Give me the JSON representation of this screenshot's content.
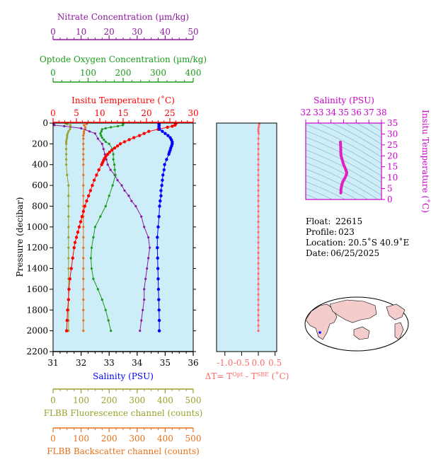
{
  "float_info": {
    "float_label": "Float:",
    "float_value": "22615",
    "profile_label": "Profile:",
    "profile_value": "023",
    "location_label": "Location:",
    "location_value": "20.5˚S  40.9˚E",
    "date_label": "Date:",
    "date_value": "06/25/2025"
  },
  "colors": {
    "temperature": "#ff0000",
    "salinity": "#0000ff",
    "oxygen": "#1a9a1a",
    "nitrate": "#8b1a9b",
    "fluorescence": "#9aa02a",
    "backscatter": "#e8701a",
    "delta_t": "#ff6a6a",
    "ts_curve": "#e020c0",
    "ts_axis": "#cc00cc",
    "plot_bg": "#cdeef8",
    "land": "#f4cccc"
  },
  "chart_data": [
    {
      "type": "line",
      "name": "profiles",
      "yaxis": {
        "label": "Pressure (decibar)",
        "range": [
          2200,
          0
        ],
        "ticks": [
          "0",
          "200",
          "400",
          "600",
          "800",
          "1000",
          "1200",
          "1400",
          "1600",
          "1800",
          "2000",
          "2200"
        ]
      },
      "axes": {
        "nitrate": {
          "label": "Nitrate Concentration (µm/kg)",
          "range": [
            0,
            50
          ],
          "ticks": [
            "0",
            "10",
            "20",
            "30",
            "40",
            "50"
          ]
        },
        "oxygen": {
          "label": "Optode Oxygen Concentration (µm/kg)",
          "range": [
            0,
            400
          ],
          "ticks": [
            "0",
            "100",
            "200",
            "300",
            "400"
          ]
        },
        "temperature": {
          "label": "Insitu Temperature (˚C)",
          "range": [
            0,
            30
          ],
          "ticks": [
            "0",
            "5",
            "10",
            "15",
            "20",
            "25",
            "30"
          ]
        },
        "salinity": {
          "label": "Salinity (PSU)",
          "range": [
            31,
            36
          ],
          "ticks": [
            "31",
            "32",
            "33",
            "34",
            "35",
            "36"
          ]
        },
        "fluorescence": {
          "label": "FLBB Fluorescence channel (counts)",
          "range": [
            0,
            500
          ],
          "ticks": [
            "0",
            "100",
            "200",
            "300",
            "400",
            "500"
          ]
        },
        "backscatter": {
          "label": "FLBB Backscatter channel (counts)",
          "range": [
            0,
            500
          ],
          "ticks": [
            "0",
            "100",
            "200",
            "300",
            "400",
            "500"
          ]
        }
      },
      "series": {
        "temperature": {
          "axis": "temperature",
          "p": [
            5,
            10,
            20,
            30,
            40,
            60,
            80,
            100,
            120,
            140,
            160,
            180,
            200,
            220,
            240,
            260,
            280,
            300,
            320,
            340,
            360,
            380,
            400,
            450,
            500,
            550,
            600,
            650,
            700,
            750,
            800,
            850,
            900,
            950,
            1000,
            1050,
            1100,
            1150,
            1200,
            1300,
            1400,
            1500,
            1600,
            1700,
            1800,
            1900,
            2000
          ],
          "v": [
            26.3,
            26.2,
            26.1,
            25.5,
            24.5,
            22.5,
            20.5,
            19.5,
            18.5,
            17.3,
            16.3,
            15.3,
            14.4,
            13.8,
            13.2,
            12.6,
            12.1,
            11.7,
            11.3,
            11.0,
            10.8,
            10.6,
            10.4,
            9.8,
            9.3,
            8.8,
            8.4,
            8.0,
            7.6,
            7.2,
            6.8,
            6.5,
            6.2,
            5.9,
            5.6,
            5.3,
            5.0,
            4.7,
            4.5,
            4.2,
            3.9,
            3.6,
            3.4,
            3.3,
            3.1,
            3.0,
            2.9
          ]
        },
        "salinity": {
          "axis": "salinity",
          "p": [
            5,
            10,
            20,
            30,
            40,
            60,
            80,
            100,
            120,
            140,
            160,
            180,
            200,
            220,
            240,
            260,
            280,
            300,
            350,
            400,
            450,
            500,
            550,
            600,
            650,
            700,
            750,
            800,
            900,
            1000,
            1100,
            1200,
            1300,
            1400,
            1500,
            1600,
            1700,
            1800,
            1900,
            2000
          ],
          "v": [
            34.78,
            34.78,
            34.78,
            34.78,
            34.78,
            34.8,
            34.9,
            35.0,
            35.1,
            35.18,
            35.22,
            35.25,
            35.25,
            35.23,
            35.2,
            35.18,
            35.15,
            35.13,
            35.05,
            34.98,
            34.96,
            34.92,
            34.9,
            34.88,
            34.85,
            34.85,
            34.82,
            34.8,
            34.78,
            34.75,
            34.72,
            34.72,
            34.73,
            34.74,
            34.75,
            34.76,
            34.77,
            34.78,
            34.79,
            34.79
          ]
        },
        "oxygen": {
          "axis": "oxygen",
          "p": [
            5,
            10,
            20,
            30,
            40,
            50,
            60,
            80,
            100,
            120,
            140,
            160,
            180,
            200,
            250,
            300,
            350,
            400,
            450,
            500,
            600,
            700,
            800,
            900,
            1000,
            1100,
            1200,
            1300,
            1400,
            1500,
            1600,
            1700,
            1800,
            1900,
            2000
          ],
          "v": [
            200,
            200,
            199,
            185,
            165,
            150,
            140,
            138,
            135,
            137,
            140,
            145,
            150,
            160,
            170,
            172,
            172,
            175,
            176,
            178,
            170,
            160,
            150,
            135,
            120,
            115,
            110,
            108,
            110,
            115,
            128,
            140,
            150,
            158,
            165
          ]
        },
        "nitrate": {
          "axis": "nitrate",
          "p": [
            5,
            10,
            20,
            30,
            50,
            80,
            100,
            150,
            200,
            250,
            300,
            350,
            400,
            450,
            500,
            550,
            600,
            650,
            700,
            750,
            800,
            900,
            1000,
            1100,
            1200,
            1300,
            1400,
            1500,
            1600,
            1700,
            1800,
            1900,
            2000
          ],
          "v": [
            0.2,
            0.2,
            0.5,
            4,
            10,
            13,
            15,
            16,
            17.5,
            18,
            18.5,
            19,
            19.5,
            20.5,
            22,
            23,
            24.5,
            25.5,
            27,
            28,
            29.5,
            31.5,
            32.5,
            34,
            34.5,
            34,
            33.5,
            33,
            32.5,
            32.5,
            32,
            31.5,
            31
          ]
        },
        "fluorescence": {
          "axis": "fluorescence",
          "p": [
            5,
            10,
            20,
            40,
            60,
            80,
            100,
            120,
            140,
            160,
            180,
            200,
            250,
            300,
            350,
            400,
            500,
            600,
            700,
            800,
            900,
            1000,
            1100,
            1200,
            1300,
            1400,
            1500,
            1600,
            1700,
            1800,
            1900,
            2000
          ],
          "v": [
            45,
            50,
            62,
            62,
            60,
            55,
            52,
            50,
            50,
            48,
            47,
            47,
            47,
            47,
            47,
            47,
            50,
            55,
            55,
            55,
            55,
            55,
            55,
            55,
            55,
            55,
            55,
            55,
            55,
            55,
            55,
            55
          ]
        },
        "backscatter": {
          "axis": "backscatter",
          "p": [
            5,
            10,
            20,
            40,
            60,
            80,
            100,
            120,
            150,
            200,
            250,
            300,
            350,
            400,
            500,
            600,
            700,
            800,
            900,
            1000,
            1100,
            1200,
            1300,
            1400,
            1500,
            1600,
            1700,
            1800,
            1900,
            2000
          ],
          "v": [
            120,
            120,
            110,
            115,
            115,
            110,
            110,
            108,
            108,
            108,
            108,
            108,
            108,
            108,
            108,
            108,
            108,
            108,
            108,
            108,
            108,
            108,
            108,
            108,
            108,
            108,
            108,
            108,
            108,
            108
          ]
        }
      }
    },
    {
      "type": "line",
      "name": "delta_t",
      "xlabel": "ΔT= T^Opt - T^SBE (˚C)",
      "xlim": [
        -1.25,
        0.55
      ],
      "xticks": [
        "-1.0",
        "-0.5",
        "0.0",
        "0.5"
      ],
      "ylim": [
        2200,
        0
      ],
      "p": [
        5,
        20,
        40,
        60,
        80,
        100,
        150,
        200,
        250,
        300,
        350,
        400,
        450,
        500,
        550,
        600,
        650,
        700,
        750,
        800,
        850,
        900,
        950,
        1000,
        1050,
        1100,
        1150,
        1200,
        1250,
        1300,
        1350,
        1400,
        1450,
        1500,
        1550,
        1600,
        1650,
        1700,
        1750,
        1800,
        1850,
        1900,
        1950,
        2000
      ],
      "v": [
        0.03,
        0.02,
        0.01,
        0.0,
        0.0,
        0.01,
        0.0,
        0.0,
        0.0,
        0.0,
        0.0,
        0.0,
        0.0,
        0.0,
        0.0,
        0.0,
        0.0,
        0.0,
        0.0,
        0.0,
        0.0,
        0.0,
        0.0,
        0.0,
        0.0,
        0.0,
        0.0,
        0.0,
        0.0,
        0.0,
        0.0,
        0.0,
        0.0,
        0.0,
        0.0,
        0.0,
        0.0,
        0.0,
        0.0,
        0.0,
        0.0,
        0.0,
        0.0,
        0.0
      ]
    },
    {
      "type": "line",
      "name": "ts_diagram",
      "xlabel": "Salinity (PSU)",
      "ylabel": "Insitu Temperature (˚C)",
      "xlim": [
        32,
        38
      ],
      "ylim": [
        0,
        35
      ],
      "xticks": [
        "32",
        "33",
        "34",
        "35",
        "36",
        "37",
        "38"
      ],
      "yticks": [
        "0",
        "5",
        "10",
        "15",
        "20",
        "25",
        "30",
        "35"
      ],
      "s": [
        34.75,
        34.76,
        34.77,
        34.78,
        34.78,
        34.8,
        34.85,
        34.9,
        34.95,
        35.0,
        35.08,
        35.15,
        35.2,
        35.25,
        35.22,
        35.15,
        35.05,
        34.96,
        34.9,
        34.85,
        34.8,
        34.78
      ],
      "t": [
        26.3,
        25.5,
        24,
        22.5,
        21,
        20,
        19,
        18,
        17,
        16,
        15,
        14,
        13.2,
        12.4,
        11.3,
        10.4,
        9.3,
        8.4,
        7.6,
        6.5,
        5.0,
        3.0
      ]
    }
  ]
}
